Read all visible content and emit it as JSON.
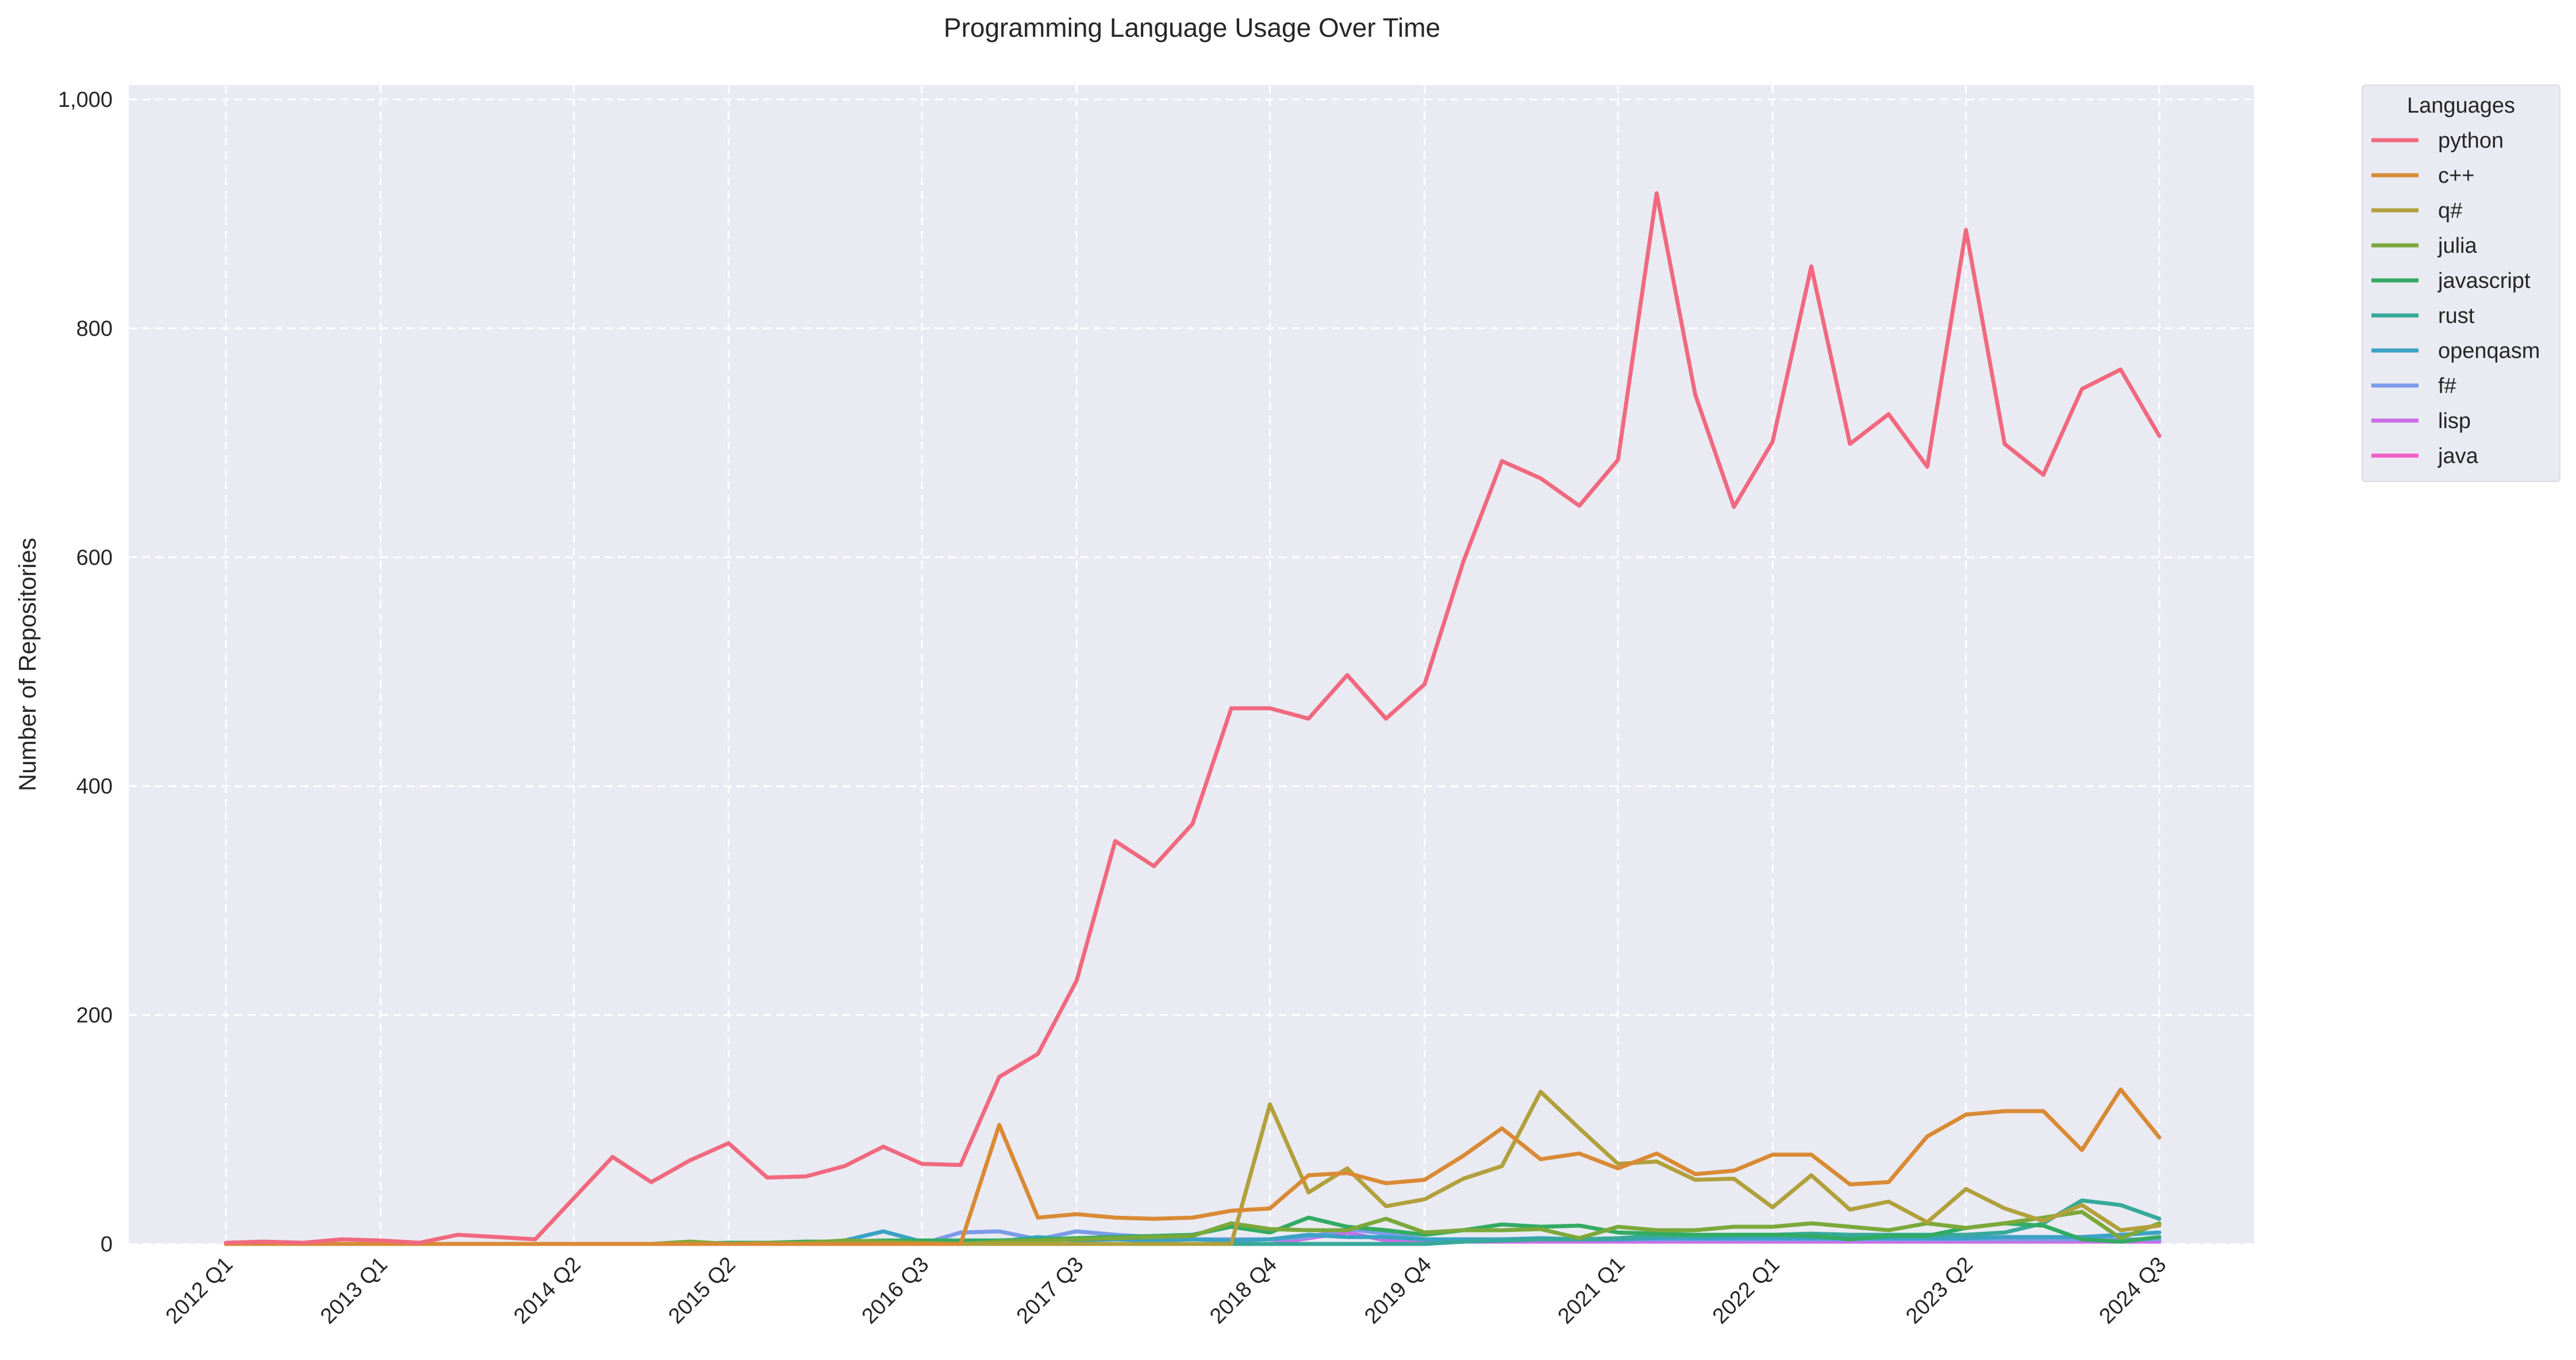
{
  "chart_data": {
    "type": "line",
    "title": "Programming Language Usage Over Time",
    "xlabel": "",
    "ylabel": "Number of Repositories",
    "ylim": [
      0,
      1000
    ],
    "yticks": [
      0,
      200,
      400,
      600,
      800,
      1000
    ],
    "ytick_labels": [
      "0",
      "200",
      "400",
      "600",
      "800",
      "1,000"
    ],
    "grid": true,
    "legend": {
      "title": "Languages",
      "placement": "outside-top-right"
    },
    "x": [
      "2012 Q1",
      "2012 Q2",
      "2012 Q3",
      "2012 Q4",
      "2013 Q1",
      "2013 Q2",
      "2013 Q3",
      "2013 Q4",
      "2014 Q1",
      "2014 Q2",
      "2014 Q3",
      "2014 Q4",
      "2015 Q1",
      "2015 Q2",
      "2015 Q3",
      "2015 Q4",
      "2016 Q1",
      "2016 Q2",
      "2016 Q3",
      "2016 Q4",
      "2017 Q1",
      "2017 Q2",
      "2017 Q3",
      "2017 Q4",
      "2018 Q1",
      "2018 Q2",
      "2018 Q3",
      "2018 Q4",
      "2019 Q1",
      "2019 Q2",
      "2019 Q3",
      "2019 Q4",
      "2020 Q1",
      "2020 Q2",
      "2020 Q3",
      "2020 Q4",
      "2021 Q1",
      "2021 Q2",
      "2021 Q3",
      "2021 Q4",
      "2022 Q1",
      "2022 Q2",
      "2022 Q3",
      "2022 Q4",
      "2023 Q1",
      "2023 Q2",
      "2023 Q3",
      "2023 Q4",
      "2024 Q1",
      "2024 Q2",
      "2024 Q3"
    ],
    "xtick_labels": [
      "2012 Q1",
      "2013 Q1",
      "2014 Q2",
      "2015 Q2",
      "2016 Q3",
      "2017 Q3",
      "2018 Q4",
      "2019 Q4",
      "2021 Q1",
      "2022 Q1",
      "2023 Q2",
      "2024 Q3"
    ],
    "series": [
      {
        "name": "python",
        "color": "#f0697f",
        "values": [
          1,
          2,
          1,
          4,
          3,
          1,
          8,
          6,
          4,
          40,
          76,
          54,
          73,
          88,
          58,
          59,
          68,
          85,
          70,
          69,
          146,
          166,
          230,
          352,
          330,
          367,
          468,
          468,
          459,
          497,
          459,
          489,
          596,
          684,
          669,
          645,
          685,
          918,
          742,
          644,
          701,
          854,
          699,
          725,
          679,
          886,
          699,
          672,
          747,
          764,
          706
        ]
      },
      {
        "name": "c++",
        "color": "#d98a35",
        "values": [
          0,
          0,
          0,
          0,
          0,
          0,
          0,
          0,
          0,
          0,
          0,
          0,
          0,
          0,
          0,
          0,
          0,
          0,
          0,
          0,
          104,
          23,
          26,
          23,
          22,
          23,
          29,
          31,
          60,
          62,
          53,
          56,
          77,
          101,
          74,
          79,
          66,
          79,
          61,
          64,
          78,
          78,
          52,
          54,
          94,
          113,
          116,
          116,
          82,
          135,
          93
        ]
      },
      {
        "name": "q#",
        "color": "#b1a03c",
        "values": [
          0,
          0,
          0,
          0,
          0,
          0,
          0,
          0,
          0,
          0,
          0,
          0,
          0,
          0,
          0,
          0,
          0,
          0,
          0,
          0,
          0,
          0,
          0,
          0,
          0,
          0,
          0,
          122,
          45,
          66,
          33,
          39,
          57,
          68,
          133,
          101,
          70,
          72,
          56,
          57,
          32,
          60,
          30,
          37,
          19,
          48,
          31,
          20,
          34,
          12,
          16
        ]
      },
      {
        "name": "julia",
        "color": "#7ba83a",
        "values": [
          0,
          0,
          0,
          0,
          0,
          0,
          0,
          0,
          0,
          0,
          0,
          0,
          2,
          0,
          1,
          1,
          3,
          2,
          1,
          0,
          2,
          3,
          4,
          5,
          6,
          7,
          18,
          13,
          12,
          12,
          22,
          10,
          12,
          12,
          13,
          5,
          15,
          12,
          12,
          15,
          15,
          18,
          15,
          12,
          18,
          14,
          18,
          23,
          28,
          5,
          18
        ]
      },
      {
        "name": "javascript",
        "color": "#32ab63",
        "values": [
          0,
          0,
          0,
          0,
          0,
          0,
          0,
          0,
          0,
          0,
          0,
          0,
          0,
          1,
          1,
          2,
          2,
          3,
          3,
          3,
          3,
          4,
          5,
          6,
          7,
          8,
          15,
          10,
          23,
          15,
          12,
          8,
          12,
          17,
          15,
          16,
          10,
          9,
          8,
          8,
          8,
          7,
          4,
          7,
          7,
          14,
          18,
          16,
          4,
          2,
          6
        ]
      },
      {
        "name": "rust",
        "color": "#37a99a",
        "values": [
          0,
          0,
          0,
          0,
          0,
          0,
          0,
          0,
          0,
          0,
          0,
          0,
          0,
          0,
          0,
          0,
          0,
          0,
          0,
          0,
          0,
          0,
          0,
          0,
          0,
          0,
          0,
          0,
          0,
          0,
          0,
          0,
          2,
          3,
          4,
          4,
          5,
          7,
          7,
          8,
          8,
          9,
          8,
          8,
          8,
          8,
          10,
          18,
          38,
          34,
          22
        ]
      },
      {
        "name": "openqasm",
        "color": "#3aa2c4",
        "values": [
          0,
          0,
          0,
          0,
          0,
          0,
          0,
          0,
          0,
          0,
          0,
          0,
          0,
          0,
          0,
          0,
          3,
          11,
          2,
          2,
          2,
          6,
          3,
          4,
          3,
          4,
          3,
          4,
          8,
          6,
          6,
          4,
          4,
          4,
          5,
          4,
          4,
          5,
          5,
          5,
          5,
          5,
          5,
          5,
          5,
          5,
          6,
          6,
          6,
          8,
          10
        ]
      },
      {
        "name": "f#",
        "color": "#7b9be8",
        "values": [
          0,
          0,
          0,
          0,
          0,
          0,
          0,
          0,
          0,
          0,
          0,
          0,
          0,
          0,
          0,
          0,
          0,
          0,
          0,
          10,
          11,
          4,
          11,
          8,
          6,
          4,
          4,
          4,
          6,
          13,
          9,
          4,
          4,
          4,
          4,
          4,
          4,
          4,
          4,
          4,
          4,
          4,
          4,
          4,
          4,
          4,
          4,
          4,
          4,
          4,
          4
        ]
      },
      {
        "name": "lisp",
        "color": "#ca6ee6",
        "values": [
          0,
          0,
          0,
          0,
          0,
          0,
          0,
          0,
          0,
          0,
          0,
          0,
          0,
          0,
          0,
          0,
          0,
          0,
          0,
          0,
          0,
          0,
          0,
          0,
          0,
          0,
          0,
          0,
          5,
          10,
          3,
          2,
          2,
          2,
          2,
          2,
          2,
          2,
          2,
          2,
          2,
          2,
          2,
          2,
          2,
          2,
          2,
          2,
          2,
          2,
          2
        ]
      },
      {
        "name": "java",
        "color": "#f15fc8",
        "values": [
          0,
          0,
          0,
          0,
          0,
          0,
          0,
          0,
          0,
          0,
          0,
          0,
          0,
          0,
          0,
          0,
          0,
          0,
          0,
          0,
          0,
          0,
          0,
          0,
          0,
          0,
          0,
          0,
          0,
          0,
          0,
          0,
          2,
          2,
          3,
          3,
          3,
          3,
          3,
          3,
          3,
          3,
          3,
          3,
          3,
          3,
          3,
          3,
          3,
          3,
          3
        ]
      }
    ]
  }
}
